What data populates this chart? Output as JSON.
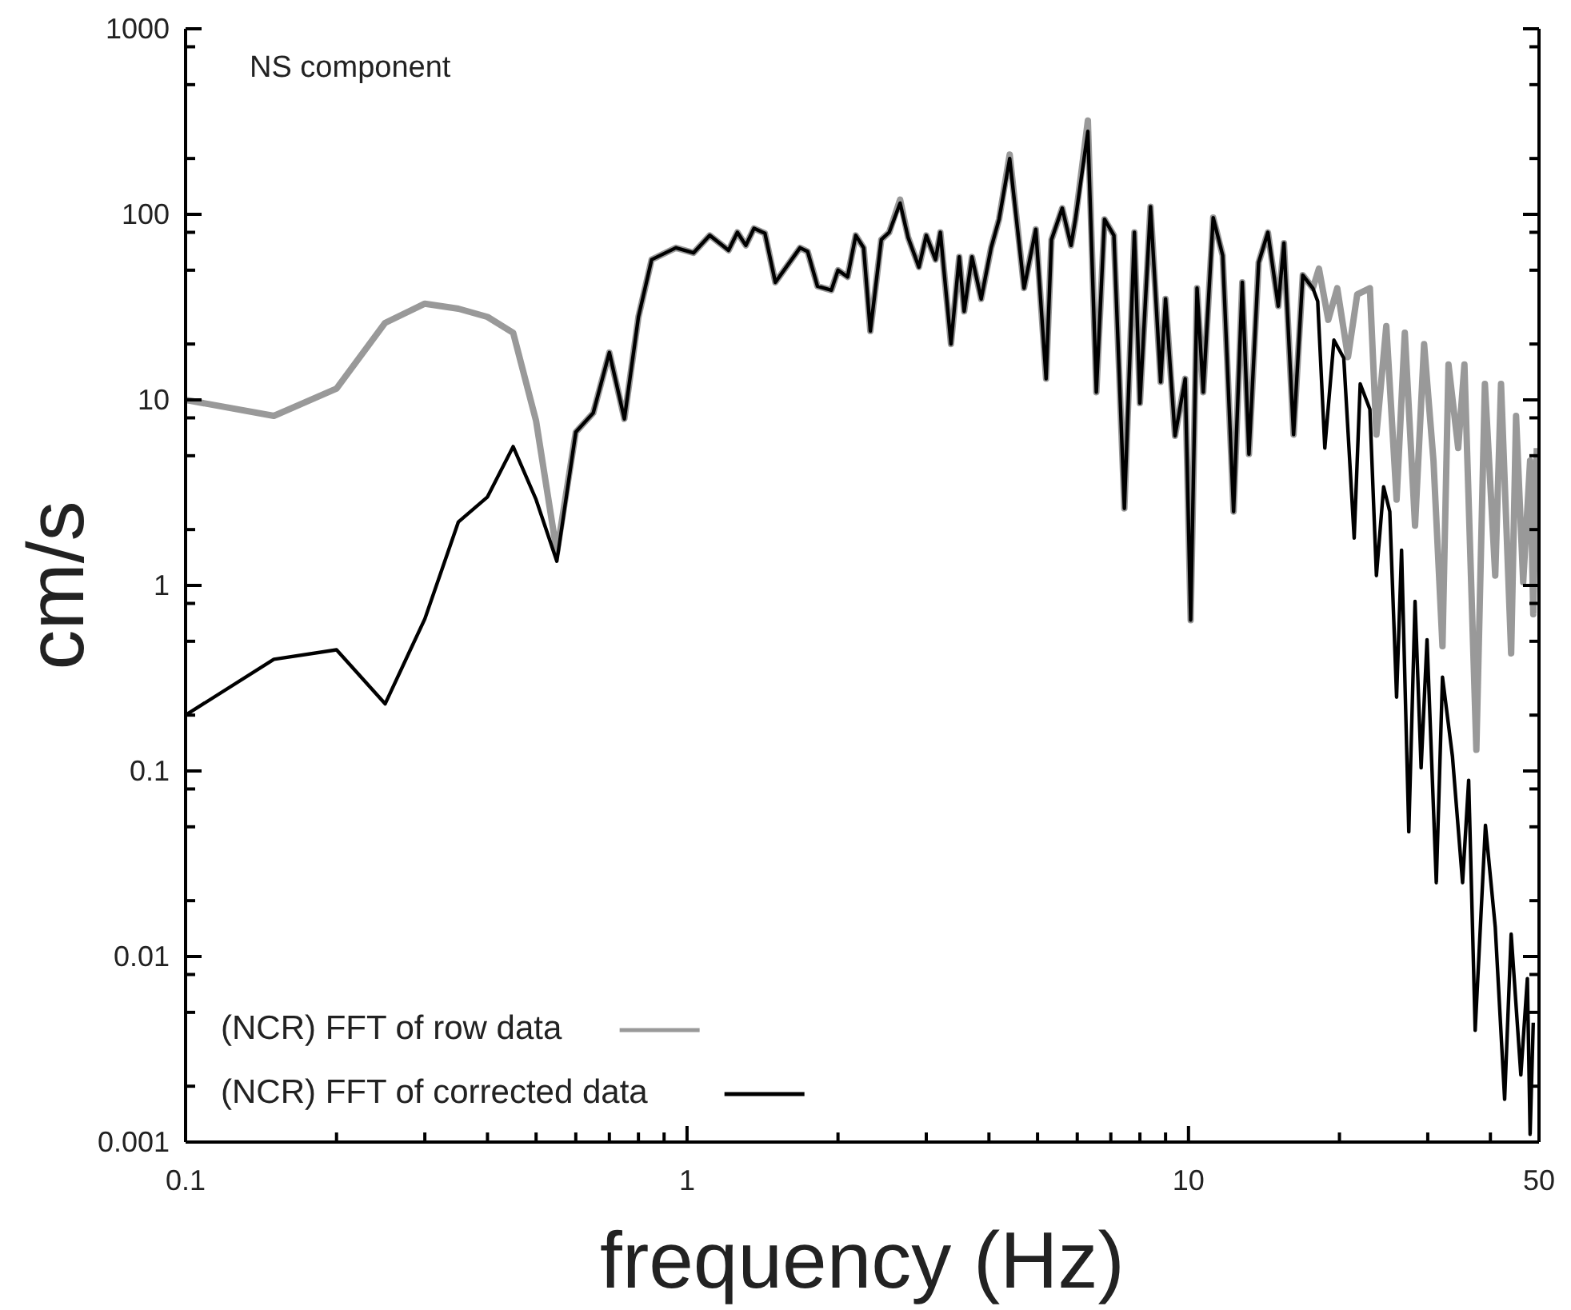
{
  "chart_data": {
    "type": "line",
    "xlabel": "frequency (Hz)",
    "ylabel": "cm/s",
    "log": "xy",
    "grid": false,
    "legend": "bottom left",
    "marker": "none",
    "line_style": "solid",
    "annotations": [
      "NS component"
    ],
    "xlim": [
      0.1,
      50
    ],
    "ylim": [
      0.001,
      1000
    ],
    "xticks": [
      0.1,
      {
        "value": 0.2,
        "label": null
      },
      {
        "value": 0.3,
        "label": null
      },
      {
        "value": 0.4,
        "label": null
      },
      {
        "value": 0.5,
        "label": null
      },
      {
        "value": 0.6,
        "label": null
      },
      {
        "value": 0.7,
        "label": null
      },
      {
        "value": 0.8,
        "label": null
      },
      {
        "value": 0.9,
        "label": null
      },
      1,
      {
        "value": 2,
        "label": null
      },
      {
        "value": 3,
        "label": null
      },
      {
        "value": 4,
        "label": null
      },
      {
        "value": 5,
        "label": null
      },
      {
        "value": 6,
        "label": null
      },
      {
        "value": 7,
        "label": null
      },
      {
        "value": 8,
        "label": null
      },
      {
        "value": 9,
        "label": null
      },
      10,
      {
        "value": 20,
        "label": null
      },
      {
        "value": 30,
        "label": null
      },
      {
        "value": 40,
        "label": null
      },
      50
    ],
    "yticks": [
      0.001,
      {
        "value": 0.002,
        "label": null
      },
      {
        "value": 0.005,
        "label": null
      },
      {
        "value": 0.008,
        "label": null
      },
      0.01,
      {
        "value": 0.02,
        "label": null
      },
      {
        "value": 0.05,
        "label": null
      },
      {
        "value": 0.08,
        "label": null
      },
      0.1,
      {
        "value": 0.2,
        "label": null
      },
      {
        "value": 0.5,
        "label": null
      },
      {
        "value": 0.8,
        "label": null
      },
      1,
      {
        "value": 2,
        "label": null
      },
      {
        "value": 5,
        "label": null
      },
      {
        "value": 8,
        "label": null
      },
      10,
      {
        "value": 20,
        "label": null
      },
      {
        "value": 50,
        "label": null
      },
      {
        "value": 80,
        "label": null
      },
      100,
      {
        "value": 200,
        "label": null
      },
      {
        "value": 500,
        "label": null
      },
      {
        "value": 800,
        "label": null
      },
      1000
    ],
    "series": [
      {
        "name": "(NCR) FFT of row data",
        "color": "#999999",
        "x": [
          0.1,
          0.15,
          0.2,
          0.25,
          0.3,
          0.35,
          0.4,
          0.45,
          0.5,
          0.55,
          0.6,
          0.65,
          0.7,
          0.75,
          0.8,
          0.85,
          0.95,
          1.03,
          1.11,
          1.21,
          1.26,
          1.31,
          1.36,
          1.43,
          1.5,
          1.68,
          1.74,
          1.82,
          1.94,
          2.0,
          2.09,
          2.17,
          2.25,
          2.32,
          2.44,
          2.53,
          2.66,
          2.76,
          2.9,
          3.0,
          3.13,
          3.2,
          3.36,
          3.49,
          3.57,
          3.7,
          3.86,
          4.04,
          4.19,
          4.4,
          4.7,
          4.96,
          5.2,
          5.33,
          5.6,
          5.83,
          5.95,
          6.3,
          6.55,
          6.8,
          7.1,
          7.45,
          7.8,
          8.0,
          8.4,
          8.8,
          9.0,
          9.4,
          9.85,
          10.1,
          10.4,
          10.7,
          11.2,
          11.7,
          12.3,
          12.8,
          13.2,
          13.8,
          14.4,
          15.1,
          15.5,
          16.2,
          16.9,
          17.7,
          18.2,
          19,
          19.8,
          20.8,
          21.7,
          23.0,
          23.7,
          24.8,
          26.0,
          27.0,
          28.3,
          29.5,
          30.8,
          32.1,
          33.0,
          34.5,
          35.5,
          37.5,
          39,
          40.9,
          42,
          44,
          45,
          46.5,
          48,
          48.7,
          49.5
        ],
        "values": [
          10,
          8.2,
          11.5,
          26,
          33,
          31,
          28,
          23,
          7.7,
          1.5,
          6.7,
          8.5,
          18,
          7.9,
          28,
          57,
          66,
          62,
          77,
          64,
          80,
          68,
          84,
          79,
          43,
          66,
          63,
          41,
          39,
          50,
          46,
          77,
          66,
          23.5,
          73,
          80,
          120,
          75,
          52,
          77,
          57,
          80,
          20,
          59,
          30,
          59,
          35,
          66,
          94,
          210,
          40,
          83,
          13,
          73,
          108,
          68,
          94,
          320,
          11,
          94,
          77,
          2.6,
          80,
          9.6,
          110,
          12.5,
          35,
          6.4,
          13,
          0.65,
          40,
          11,
          96,
          60,
          2.5,
          43,
          5.1,
          55,
          80,
          32,
          70,
          6.5,
          47,
          40,
          51,
          27,
          40,
          17,
          37,
          40,
          6.5,
          25,
          2.9,
          23,
          2.1,
          20,
          4.7,
          0.47,
          15.5,
          5.5,
          15.5,
          0.13,
          12.2,
          1.13,
          12.2,
          0.43,
          8.2,
          1.04,
          4.7,
          0.7,
          5.5
        ]
      },
      {
        "name": "(NCR) FFT of corrected data",
        "color": "#000000",
        "x": [
          0.1,
          0.15,
          0.2,
          0.25,
          0.3,
          0.35,
          0.4,
          0.45,
          0.5,
          0.55,
          0.6,
          0.65,
          0.7,
          0.75,
          0.8,
          0.85,
          0.95,
          1.03,
          1.11,
          1.21,
          1.26,
          1.31,
          1.36,
          1.43,
          1.5,
          1.68,
          1.74,
          1.82,
          1.94,
          2.0,
          2.09,
          2.17,
          2.25,
          2.32,
          2.44,
          2.53,
          2.66,
          2.76,
          2.9,
          3.0,
          3.13,
          3.2,
          3.36,
          3.49,
          3.57,
          3.7,
          3.86,
          4.04,
          4.19,
          4.4,
          4.7,
          4.96,
          5.2,
          5.33,
          5.6,
          5.83,
          5.95,
          6.3,
          6.55,
          6.8,
          7.1,
          7.45,
          7.8,
          8.0,
          8.4,
          8.8,
          9.0,
          9.4,
          9.85,
          10.1,
          10.4,
          10.7,
          11.2,
          11.7,
          12.3,
          12.8,
          13.2,
          13.8,
          14.4,
          15.1,
          15.5,
          16.2,
          16.9,
          17.7,
          18.1,
          18.7,
          19.5,
          20.4,
          21.4,
          22.0,
          23.0,
          23.7,
          24.5,
          25.2,
          26.0,
          26.6,
          27.5,
          28.3,
          29.1,
          29.9,
          31.2,
          32.1,
          33.6,
          35.2,
          36.2,
          37.3,
          39.1,
          40.9,
          42.7,
          44.0,
          46.0,
          47.4,
          48.0,
          48.7
        ],
        "values": [
          0.2,
          0.4,
          0.45,
          0.23,
          0.66,
          2.2,
          3.0,
          5.6,
          2.9,
          1.35,
          6.7,
          8.5,
          18,
          7.9,
          28,
          57,
          66,
          62,
          77,
          64,
          80,
          68,
          84,
          79,
          43,
          66,
          63,
          41,
          39,
          50,
          46,
          77,
          66,
          23.5,
          73,
          80,
          115,
          75,
          52,
          77,
          57,
          80,
          20,
          59,
          30,
          59,
          35,
          66,
          94,
          200,
          40,
          83,
          13,
          73,
          108,
          68,
          94,
          280,
          11,
          94,
          77,
          2.6,
          80,
          9.6,
          110,
          12.5,
          35,
          6.4,
          13,
          0.65,
          40,
          11,
          96,
          60,
          2.5,
          43,
          5.1,
          55,
          80,
          32,
          70,
          6.5,
          47,
          40,
          34,
          5.5,
          21,
          16.8,
          1.8,
          12.2,
          8.9,
          1.13,
          3.4,
          2.5,
          0.25,
          1.55,
          0.047,
          0.82,
          0.104,
          0.51,
          0.025,
          0.32,
          0.12,
          0.025,
          0.089,
          0.004,
          0.051,
          0.0144,
          0.0017,
          0.0132,
          0.0023,
          0.0076,
          0.0011,
          0.0044
        ]
      }
    ]
  }
}
